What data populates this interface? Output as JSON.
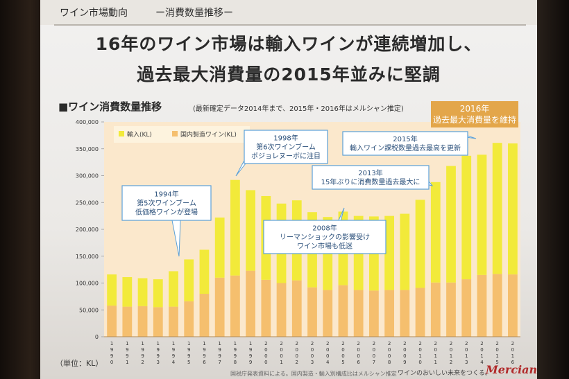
{
  "slide": {
    "section_label": "ワイン市場動向",
    "section_sub": "ー消費数量推移ー",
    "headline_1": "16年のワイン市場は輸入ワインが連続増加し、",
    "headline_2": "過去最大消費量の2015年並みに堅調",
    "chart_heading": "■ワイン消費数量推移",
    "chart_note": "(最新確定データ2014年まで、2015年・2016年はメルシャン推定)",
    "badge_2016_line1": "2016年",
    "badge_2016_line2": "過去最大消費量を維持",
    "unit_label": "（単位：KL）",
    "footnote": "国税庁発表資料による。国内製造・輸入別構成比はメルシャン推定",
    "tagline": "ワインのおいしい未来をつくる。",
    "brand": "Mercian"
  },
  "colors": {
    "imported": "#f2ea3a",
    "domestic": "#f5bf6e",
    "plot_bg": "#fbe8cc",
    "callout_border": "#5aa0d8"
  },
  "callouts": [
    {
      "id": "1994",
      "lines": [
        "1994年",
        "第5次ワインブーム",
        "低価格ワインが登場"
      ]
    },
    {
      "id": "1998",
      "lines": [
        "1998年",
        "第6次ワインブーム",
        "ボジョレヌーボに注目"
      ]
    },
    {
      "id": "2008",
      "lines": [
        "2008年",
        "リーマンショックの影響受け",
        "ワイン市場も低迷"
      ]
    },
    {
      "id": "2015",
      "lines": [
        "2015年",
        "輸入ワイン課税数量過去最高を更新"
      ]
    },
    {
      "id": "2013",
      "lines": [
        "2013年",
        "15年ぶりに消費数量過去最大に"
      ]
    }
  ],
  "chart_data": {
    "type": "bar",
    "stacked": true,
    "categories": [
      "1990",
      "1991",
      "1992",
      "1993",
      "1994",
      "1995",
      "1996",
      "1997",
      "1998",
      "1999",
      "2000",
      "2001",
      "2002",
      "2003",
      "2004",
      "2005",
      "2006",
      "2007",
      "2008",
      "2009",
      "2010",
      "2011",
      "2012",
      "2013",
      "2014",
      "2015",
      "2016"
    ],
    "series": [
      {
        "name": "国内製造ワイン(KL)",
        "values": [
          58000,
          56000,
          57000,
          55000,
          56000,
          66000,
          80000,
          110000,
          114000,
          123000,
          106000,
          100000,
          105000,
          92000,
          87000,
          96000,
          87000,
          86000,
          87000,
          87000,
          91000,
          101000,
          101000,
          107000,
          115000,
          117000,
          116000
        ]
      },
      {
        "name": "輸入(KL)",
        "values": [
          58000,
          55000,
          52000,
          52000,
          66000,
          78000,
          82000,
          112000,
          178000,
          150000,
          156000,
          148000,
          149000,
          140000,
          136000,
          137000,
          138000,
          138000,
          138000,
          142000,
          164000,
          187000,
          217000,
          230000,
          224000,
          244000,
          244000
        ]
      }
    ],
    "legend": [
      "輸入(KL)",
      "国内製造ワイン(KL)"
    ],
    "legend_position": "top-left",
    "y_ticks": [
      0,
      50000,
      100000,
      150000,
      200000,
      250000,
      300000,
      350000,
      400000
    ],
    "y_tick_labels": [
      "0",
      "50,000",
      "100,000",
      "150,000",
      "200,000",
      "250,000",
      "300,000",
      "350,000",
      "400,000"
    ],
    "ylim": [
      0,
      400000
    ],
    "xlabel": "",
    "ylabel": "",
    "grid": false
  }
}
